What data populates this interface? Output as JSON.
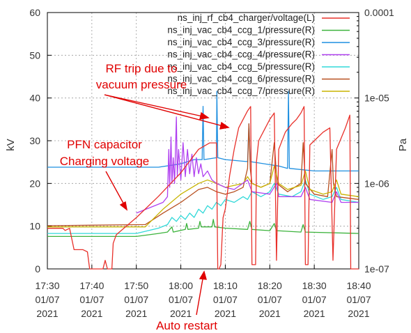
{
  "chart_data": {
    "type": "line",
    "xlabel": "",
    "ylabel": "kV",
    "y2label": "Pa",
    "ylim": [
      0,
      60
    ],
    "y2lim": [
      1e-07,
      0.0001
    ],
    "y2scale": "log",
    "grid": "dashed",
    "legend_placement": "top-right",
    "x_ticks": [
      {
        "t": 0,
        "l1": "17:30",
        "l2": "01/07",
        "l3": "2021"
      },
      {
        "t": 10,
        "l1": "17:40",
        "l2": "01/07",
        "l3": "2021"
      },
      {
        "t": 20,
        "l1": "17:50",
        "l2": "01/07",
        "l3": "2021"
      },
      {
        "t": 30,
        "l1": "18:00",
        "l2": "01/07",
        "l3": "2021"
      },
      {
        "t": 40,
        "l1": "18:10",
        "l2": "01/07",
        "l3": "2021"
      },
      {
        "t": 50,
        "l1": "18:20",
        "l2": "01/07",
        "l3": "2021"
      },
      {
        "t": 60,
        "l1": "18:30",
        "l2": "01/07",
        "l3": "2021"
      },
      {
        "t": 70,
        "l1": "18:40",
        "l2": "01/07",
        "l3": "2021"
      }
    ],
    "y_ticks": [
      "0",
      "10",
      "20",
      "30",
      "40",
      "50",
      "60"
    ],
    "y2_ticks": [
      "1e-07",
      "1e-06",
      "1e-05",
      "0.0001"
    ],
    "series": [
      {
        "name": "ns_inj_rf_cb4_charger/voltage(L)",
        "color": "#e8302a",
        "axis": "L",
        "points": [
          [
            0,
            9.5
          ],
          [
            3.5,
            9.5
          ],
          [
            4,
            9
          ],
          [
            5,
            9.5
          ],
          [
            6,
            4.5
          ],
          [
            8,
            4.5
          ],
          [
            9,
            4
          ],
          [
            9.5,
            0
          ],
          [
            12.5,
            0
          ],
          [
            13,
            2
          ],
          [
            13.5,
            0
          ],
          [
            14.5,
            0
          ],
          [
            14.8,
            6
          ],
          [
            15.5,
            8
          ],
          [
            20,
            12
          ],
          [
            25,
            17
          ],
          [
            30,
            22.5
          ],
          [
            34,
            28
          ],
          [
            36.5,
            29.5
          ],
          [
            38,
            29.5
          ],
          [
            38.3,
            0
          ],
          [
            38.6,
            0
          ],
          [
            39,
            1
          ],
          [
            39.5,
            12
          ],
          [
            40,
            14
          ],
          [
            41,
            22
          ],
          [
            42,
            28
          ],
          [
            43,
            33
          ],
          [
            45,
            37
          ],
          [
            45.7,
            38
          ],
          [
            46,
            1
          ],
          [
            46.8,
            1
          ],
          [
            47,
            25
          ],
          [
            47.5,
            30
          ],
          [
            49,
            33
          ],
          [
            50,
            35
          ],
          [
            51,
            36.5
          ],
          [
            51.5,
            2
          ],
          [
            52,
            28
          ],
          [
            53.5,
            32
          ],
          [
            55,
            34
          ],
          [
            56,
            35
          ],
          [
            57,
            36.5
          ],
          [
            57.7,
            38
          ],
          [
            58,
            1
          ],
          [
            58.6,
            1
          ],
          [
            59,
            29
          ],
          [
            60,
            30
          ],
          [
            62,
            32
          ],
          [
            63.5,
            33
          ],
          [
            64.2,
            2
          ],
          [
            65,
            28
          ],
          [
            67,
            33
          ],
          [
            68,
            36
          ],
          [
            68.2,
            0
          ],
          [
            69,
            0
          ],
          [
            70,
            0
          ]
        ]
      },
      {
        "name": "ns_inj_vac_cb4_ccg_1/pressure(R)",
        "color": "#3cb33c",
        "axis": "R",
        "points": [
          [
            0,
            2.4e-07
          ],
          [
            20,
            2.4e-07
          ],
          [
            25,
            2.6e-07
          ],
          [
            27,
            2.7e-07
          ],
          [
            28,
            3.1e-07
          ],
          [
            28.3,
            2.7e-07
          ],
          [
            31,
            2.9e-07
          ],
          [
            31.3,
            3.4e-07
          ],
          [
            31.6,
            2.9e-07
          ],
          [
            34,
            3e-07
          ],
          [
            34.3,
            3.6e-07
          ],
          [
            34.6,
            3.1e-07
          ],
          [
            37,
            3.1e-07
          ],
          [
            37.3,
            3.8e-07
          ],
          [
            37.6,
            3.1e-07
          ],
          [
            40,
            3e-07
          ],
          [
            45,
            2.9e-07
          ],
          [
            45.5,
            3.6e-07
          ],
          [
            46,
            2.9e-07
          ],
          [
            50,
            2.8e-07
          ],
          [
            51,
            3.4e-07
          ],
          [
            51.5,
            2.8e-07
          ],
          [
            57,
            2.7e-07
          ],
          [
            57.5,
            3.3e-07
          ],
          [
            58,
            2.7e-07
          ],
          [
            70,
            2.6e-07
          ]
        ]
      },
      {
        "name": "ns_inj_vac_cb4_ccg_3/pressure(R)",
        "color": "#1e8fe0",
        "axis": "R",
        "points": [
          [
            0,
            1.55e-06
          ],
          [
            25,
            1.55e-06
          ],
          [
            30,
            1.7e-06
          ],
          [
            33,
            1.9e-06
          ],
          [
            34.8,
            1.9e-06
          ],
          [
            35,
            8e-06
          ],
          [
            35.2,
            1.9e-06
          ],
          [
            38,
            2e-06
          ],
          [
            38.1,
            1.2e-05
          ],
          [
            38.3,
            2e-06
          ],
          [
            40,
            1.9e-06
          ],
          [
            45,
            1.8e-06
          ],
          [
            45.3,
            5e-06
          ],
          [
            45.6,
            1.8e-06
          ],
          [
            52,
            1.6e-06
          ],
          [
            54,
            1.5e-06
          ],
          [
            54.2,
            1.2e-05
          ],
          [
            54.4,
            1.5e-06
          ],
          [
            60,
            1.4e-06
          ],
          [
            70,
            1.4e-06
          ]
        ]
      },
      {
        "name": "ns_inj_vac_cb4_ccg_4/pressure(R)",
        "color": "#b040f0",
        "axis": "R",
        "points": [
          [
            20,
            4.5e-07
          ],
          [
            26,
            6e-07
          ],
          [
            27,
            7e-07
          ],
          [
            27.3,
            2.5e-06
          ],
          [
            27.5,
            9e-07
          ],
          [
            27.8,
            3.5e-06
          ],
          [
            28,
            1e-06
          ],
          [
            28.3,
            2e-06
          ],
          [
            28.6,
            1e-06
          ],
          [
            29,
            6e-06
          ],
          [
            29.2,
            1.2e-06
          ],
          [
            29.5,
            2.5e-06
          ],
          [
            30,
            1.1e-06
          ],
          [
            30.5,
            3e-06
          ],
          [
            31,
            1.2e-06
          ],
          [
            31.5,
            2.5e-06
          ],
          [
            32,
            1.3e-06
          ],
          [
            32.5,
            2.2e-06
          ],
          [
            33,
            1.2e-06
          ],
          [
            33.5,
            2e-06
          ],
          [
            34,
            1.3e-06
          ],
          [
            34.5,
            1.7e-06
          ],
          [
            35,
            1.2e-06
          ],
          [
            36,
            1.4e-06
          ],
          [
            37,
            1.1e-06
          ],
          [
            38,
            1e-06
          ],
          [
            40,
            9e-07
          ],
          [
            42,
            8.5e-07
          ],
          [
            45,
            1.1e-06
          ],
          [
            46,
            8e-07
          ],
          [
            50,
            7.5e-07
          ],
          [
            51.5,
            1e-06
          ],
          [
            52,
            7e-07
          ],
          [
            57,
            7e-07
          ],
          [
            58,
            9e-07
          ],
          [
            59,
            6.5e-07
          ],
          [
            64,
            6e-07
          ],
          [
            65,
            8e-07
          ],
          [
            66,
            6e-07
          ],
          [
            70,
            6e-07
          ]
        ]
      },
      {
        "name": "ns_inj_vac_cb4_ccg_5/pressure(R)",
        "color": "#30d8d8",
        "axis": "R",
        "points": [
          [
            0,
            2.6e-07
          ],
          [
            20,
            2.6e-07
          ],
          [
            25,
            3e-07
          ],
          [
            27,
            3.3e-07
          ],
          [
            28,
            4e-07
          ],
          [
            29,
            3.6e-07
          ],
          [
            30,
            4.2e-07
          ],
          [
            31,
            3.8e-07
          ],
          [
            32,
            4.5e-07
          ],
          [
            33,
            4e-07
          ],
          [
            34,
            5e-07
          ],
          [
            35,
            4.5e-07
          ],
          [
            36,
            5.5e-07
          ],
          [
            37,
            5e-07
          ],
          [
            38,
            6e-07
          ],
          [
            39,
            5.5e-07
          ],
          [
            40,
            6.5e-07
          ],
          [
            42,
            6e-07
          ],
          [
            44,
            7e-07
          ],
          [
            45,
            6.5e-07
          ],
          [
            46,
            8e-07
          ],
          [
            48,
            7e-07
          ],
          [
            50,
            8e-07
          ],
          [
            51,
            1e-06
          ],
          [
            52,
            7.5e-07
          ],
          [
            55,
            7e-07
          ],
          [
            57,
            8e-07
          ],
          [
            58,
            1.1e-06
          ],
          [
            59,
            7.5e-07
          ],
          [
            62,
            6.5e-07
          ],
          [
            64,
            7e-07
          ],
          [
            65,
            9e-07
          ],
          [
            66,
            6.5e-07
          ],
          [
            70,
            6e-07
          ]
        ]
      },
      {
        "name": "ns_inj_vac_cb4_ccg_6/pressure(R)",
        "color": "#b85020",
        "axis": "R",
        "points": [
          [
            0,
            3.2e-07
          ],
          [
            22,
            3.3e-07
          ],
          [
            26,
            4.5e-07
          ],
          [
            30,
            6e-07
          ],
          [
            34,
            8.5e-07
          ],
          [
            36,
            9e-07
          ],
          [
            38,
            8e-07
          ],
          [
            40,
            7.5e-07
          ],
          [
            42,
            8e-07
          ],
          [
            44,
            9e-07
          ],
          [
            45,
            1.5e-06
          ],
          [
            45.3,
            5e-06
          ],
          [
            45.6,
            1.5e-06
          ],
          [
            46,
            1e-06
          ],
          [
            48,
            9e-07
          ],
          [
            50,
            1e-06
          ],
          [
            51,
            3e-06
          ],
          [
            51.3,
            1.8e-06
          ],
          [
            51.6,
            1e-06
          ],
          [
            54,
            8e-07
          ],
          [
            57,
            1e-06
          ],
          [
            57.5,
            3e-06
          ],
          [
            58,
            1e-06
          ],
          [
            60,
            7.5e-07
          ],
          [
            63,
            7e-07
          ],
          [
            64,
            2.5e-06
          ],
          [
            64.3,
            1e-06
          ],
          [
            65,
            7e-07
          ],
          [
            70,
            6.5e-07
          ]
        ]
      },
      {
        "name": "ns_inj_vac_cb4_ccg_7/pressure(R)",
        "color": "#c8b400",
        "axis": "R",
        "points": [
          [
            0,
            3.1e-07
          ],
          [
            22,
            3.1e-07
          ],
          [
            26,
            5e-07
          ],
          [
            30,
            7.5e-07
          ],
          [
            34,
            1e-06
          ],
          [
            36,
            1.1e-06
          ],
          [
            38,
            1e-06
          ],
          [
            40,
            9e-07
          ],
          [
            42,
            9.5e-07
          ],
          [
            44,
            1e-06
          ],
          [
            45,
            1.2e-06
          ],
          [
            46,
            1e-06
          ],
          [
            48,
            9e-07
          ],
          [
            50,
            1e-06
          ],
          [
            51,
            1.6e-06
          ],
          [
            52,
            1e-06
          ],
          [
            54,
            8.5e-07
          ],
          [
            57,
            9.5e-07
          ],
          [
            58,
            1.4e-06
          ],
          [
            59,
            8.5e-07
          ],
          [
            62,
            7.5e-07
          ],
          [
            64,
            8e-07
          ],
          [
            65,
            1.1e-06
          ],
          [
            66,
            7.5e-07
          ],
          [
            70,
            7e-07
          ]
        ]
      }
    ],
    "annotations": [
      {
        "text": "RF trip due to",
        "id": "rf1"
      },
      {
        "text": "vacuum pressure",
        "id": "rf2"
      },
      {
        "text": "PFN capacitor",
        "id": "pfn1"
      },
      {
        "text": "Charging voltage",
        "id": "pfn2"
      },
      {
        "text": "Auto restart",
        "id": "auto"
      }
    ]
  }
}
